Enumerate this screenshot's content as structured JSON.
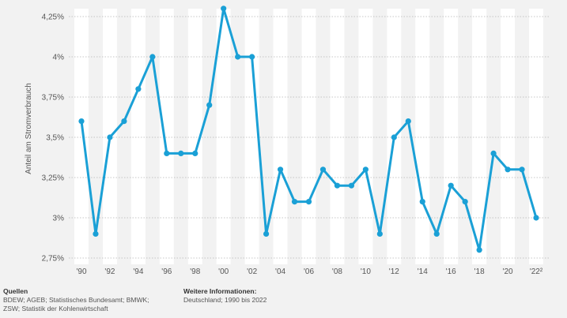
{
  "chart_data": {
    "type": "line",
    "ylabel": "Anteil am Stromverbrauch",
    "ylim": [
      2.75,
      4.25
    ],
    "y_ticks": [
      "4,25%",
      "4%",
      "3,75%",
      "3,5%",
      "3,25%",
      "3%",
      "2,75%"
    ],
    "x_tick_labels": [
      "'90",
      "'92",
      "'94",
      "'96",
      "'98",
      "'00",
      "'02",
      "'04",
      "'06",
      "'08",
      "'10",
      "'12",
      "'14",
      "'16",
      "'18",
      "'20",
      "'22²"
    ],
    "x": [
      1990,
      1991,
      1992,
      1993,
      1994,
      1995,
      1996,
      1997,
      1998,
      1999,
      2000,
      2001,
      2002,
      2003,
      2004,
      2005,
      2006,
      2007,
      2008,
      2009,
      2010,
      2011,
      2012,
      2013,
      2014,
      2015,
      2016,
      2017,
      2018,
      2019,
      2020,
      2021,
      2022
    ],
    "series": [
      {
        "values": [
          3.6,
          2.9,
          3.5,
          3.6,
          3.8,
          4.0,
          3.4,
          3.4,
          3.4,
          3.7,
          4.3,
          4.0,
          4.0,
          2.9,
          3.3,
          3.1,
          3.1,
          3.3,
          3.2,
          3.2,
          3.3,
          2.9,
          3.5,
          3.6,
          3.1,
          2.9,
          3.2,
          3.1,
          2.8,
          3.4,
          3.3,
          3.3,
          3.0
        ]
      }
    ],
    "grid": true,
    "line_color": "#1aa0d6"
  },
  "footer": {
    "sources_title": "Quellen",
    "sources_line1": "BDEW; AGEB; Statistisches Bundesamt; BMWK;",
    "sources_line2": "ZSW; Statistik der Kohlenwirtschaft",
    "info_title": "Weitere Informationen:",
    "info_line1": "Deutschland; 1990 bis 2022"
  }
}
